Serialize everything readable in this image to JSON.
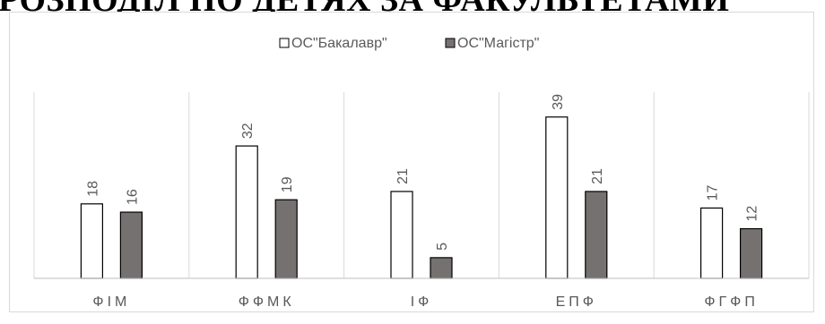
{
  "heading": "РОЗПОДІЛ ПО ДЕТЯХ ЗА ФАКУЛЬТЕТАМИ",
  "chart_data": {
    "type": "bar",
    "title": "",
    "xlabel": "",
    "ylabel": "",
    "categories": [
      "ФІМ",
      "ФФМК",
      "ІФ",
      "ЕПФ",
      "ФГФП"
    ],
    "series": [
      {
        "name": "ОС\"Бакалавр\"",
        "values": [
          18,
          32,
          21,
          39,
          17
        ],
        "color": "#ffffff",
        "stroke": "#000000"
      },
      {
        "name": "ОС\"Магістр\"",
        "values": [
          16,
          19,
          5,
          21,
          12
        ],
        "color": "#767171",
        "stroke": "#000000"
      }
    ],
    "ylim": [
      0,
      45
    ],
    "grid": "vertical category separators",
    "legend": "top-center",
    "data_labels": "rotated"
  }
}
